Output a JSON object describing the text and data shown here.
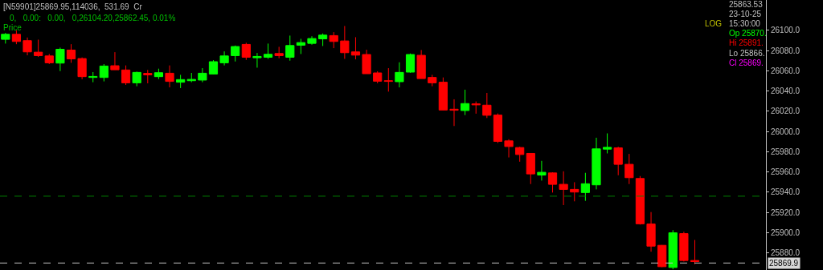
{
  "chart_data": {
    "type": "candlestick",
    "categories": [
      null,
      null,
      null,
      null,
      null,
      null,
      null,
      null,
      null,
      null,
      null,
      null,
      null,
      null,
      null,
      null,
      null,
      null,
      null,
      null,
      null,
      null,
      null,
      null,
      null,
      null,
      null,
      null,
      null,
      null,
      null,
      null,
      null,
      null,
      null,
      null,
      null,
      null,
      null,
      null,
      null,
      null,
      null,
      null,
      null,
      null,
      null,
      null,
      null,
      null,
      null,
      null,
      null,
      null,
      null,
      null,
      null,
      null,
      null,
      null,
      null,
      null,
      null,
      null,
      null,
      null,
      null,
      null,
      null,
      null
    ],
    "ohlc": [
      [
        26091.1,
        26097.4,
        26086.9,
        26096.1
      ],
      [
        26096.1,
        26100.0,
        26086.3,
        26089.0
      ],
      [
        26089.8,
        26092.9,
        26075.3,
        26078.7
      ],
      [
        26078.4,
        26090.8,
        26073.7,
        26075.0
      ],
      [
        26074.7,
        26076.6,
        26066.6,
        26067.9
      ],
      [
        26067.6,
        26082.9,
        26059.7,
        26081.3
      ],
      [
        26080.5,
        26086.3,
        26067.9,
        26071.8
      ],
      [
        26072.1,
        26073.2,
        26051.6,
        26054.2
      ],
      [
        26053.4,
        26058.7,
        26048.7,
        26054.4
      ],
      [
        26053.4,
        26066.6,
        26049.5,
        26064.7
      ],
      [
        26065.0,
        26078.4,
        26061.0,
        26061.0
      ],
      [
        26060.8,
        26065.3,
        26046.0,
        26048.1
      ],
      [
        26048.1,
        26059.2,
        26044.7,
        26058.4
      ],
      [
        26057.4,
        26060.8,
        26047.6,
        26056.0
      ],
      [
        26054.2,
        26062.1,
        26051.8,
        26058.1
      ],
      [
        26057.6,
        26065.3,
        26043.6,
        26049.5
      ],
      [
        26048.7,
        26056.0,
        26042.9,
        26051.3
      ],
      [
        26050.2,
        26057.9,
        26048.7,
        26051.5
      ],
      [
        26050.8,
        26062.6,
        26048.7,
        26057.6
      ],
      [
        26056.8,
        26070.5,
        26056.6,
        26069.0
      ],
      [
        26067.9,
        26079.2,
        26065.3,
        26074.7
      ],
      [
        26075.0,
        26085.0,
        26069.2,
        26084.0
      ],
      [
        26086.1,
        26087.7,
        26070.8,
        26073.4
      ],
      [
        26072.9,
        26077.6,
        26063.1,
        26074.2
      ],
      [
        26073.4,
        26086.9,
        26071.8,
        26076.3
      ],
      [
        26077.1,
        26083.7,
        26072.4,
        26075.0
      ],
      [
        26073.4,
        26094.8,
        26070.0,
        26085.0
      ],
      [
        26085.3,
        26091.6,
        26076.6,
        26087.9
      ],
      [
        26087.1,
        26094.2,
        26085.8,
        26091.9
      ],
      [
        26091.6,
        26096.9,
        26084.5,
        26095.3
      ],
      [
        26094.8,
        26098.2,
        26082.4,
        26089.0
      ],
      [
        26089.5,
        26104.3,
        26071.8,
        26077.9
      ],
      [
        26078.7,
        26093.2,
        26071.3,
        26075.5
      ],
      [
        26076.1,
        26080.8,
        26057.1,
        26057.1
      ],
      [
        26057.9,
        26059.5,
        26047.6,
        26049.7
      ],
      [
        26050.2,
        26062.6,
        26039.4,
        26049.5
      ],
      [
        26049.2,
        26068.4,
        26043.6,
        26058.4
      ],
      [
        26058.7,
        26077.1,
        26058.1,
        26076.1
      ],
      [
        26075.3,
        26080.5,
        26052.3,
        26052.3
      ],
      [
        26053.4,
        26056.0,
        26044.7,
        26048.1
      ],
      [
        26048.7,
        26053.4,
        26021.2,
        26021.2
      ],
      [
        26022.0,
        26031.8,
        26005.4,
        26021.0
      ],
      [
        26020.7,
        26041.3,
        26016.2,
        26027.6
      ],
      [
        26027.3,
        26029.7,
        26017.6,
        26026.3
      ],
      [
        26026.0,
        26038.1,
        26013.3,
        26016.0
      ],
      [
        26016.2,
        26017.8,
        25988.6,
        25990.2
      ],
      [
        25990.7,
        25992.3,
        25974.3,
        25985.1
      ],
      [
        25984.1,
        25984.9,
        25970.1,
        25977.2
      ],
      [
        25978.3,
        25978.3,
        25948.0,
        25958.0
      ],
      [
        25956.9,
        25970.9,
        25951.4,
        25959.6
      ],
      [
        25959.0,
        25959.6,
        25939.6,
        25947.7
      ],
      [
        25947.7,
        25960.6,
        25927.2,
        25942.7
      ],
      [
        25942.7,
        25949.8,
        25930.9,
        25940.1
      ],
      [
        25939.6,
        25959.1,
        25931.4,
        25948.3
      ],
      [
        25947.2,
        25993.8,
        25942.7,
        25982.8
      ],
      [
        25982.5,
        25998.1,
        25978.3,
        25984.3
      ],
      [
        25983.8,
        25984.9,
        25956.7,
        25967.5
      ],
      [
        25967.5,
        25977.8,
        25948.0,
        25954.3
      ],
      [
        25953.5,
        25955.9,
        25907.9,
        25908.7
      ],
      [
        25908.5,
        25920.3,
        25881.1,
        25886.6
      ],
      [
        25887.4,
        25887.7,
        25865.8,
        25866.3
      ],
      [
        25865.5,
        25902.4,
        25863.7,
        25899.8
      ],
      [
        25899.0,
        25900.8,
        25871.4,
        25872.4
      ],
      [
        25872.4,
        25892.7,
        25868.7,
        25871.3
      ],
      null,
      null,
      null,
      null,
      null,
      null
    ],
    "ylim": [
      25863,
      26130
    ],
    "yticks": [
      {
        "value": 25880,
        "label": "25880.0"
      },
      {
        "value": 25900,
        "label": "25900.0"
      },
      {
        "value": 25920,
        "label": "25920.0"
      },
      {
        "value": 25940,
        "label": "25940.0"
      },
      {
        "value": 25960,
        "label": "25960.0"
      },
      {
        "value": 25980,
        "label": "25980.0"
      },
      {
        "value": 26000,
        "label": "26000.0"
      },
      {
        "value": 26020,
        "label": "26020.0"
      },
      {
        "value": 26040,
        "label": "26040.0"
      },
      {
        "value": 26060,
        "label": "26060.0"
      },
      {
        "value": 26080,
        "label": "26080.0"
      },
      {
        "value": 26100,
        "label": "26100.0"
      }
    ],
    "ref_lines": [
      {
        "axis": "y",
        "value": 25936,
        "color": "#008000",
        "line_style": "dashed"
      },
      {
        "axis": "y",
        "value": 25869.9,
        "label": "25869.9",
        "color": "#c0c0c0",
        "line_style": "dashed"
      }
    ],
    "annotations": [
      "[N59901]25869.95,114036,  531.69  Cr",
      "0,   0.00:   0.00,   0,26104.20,25862.45, 0.01%",
      "Price",
      "LOG",
      "25863.53",
      "23-10-25",
      "15:30:00",
      "Op 25870.",
      "Hi 25891.",
      "Lo 25866.",
      "Cl 25869."
    ],
    "grid": false,
    "tick_labels": "y"
  }
}
